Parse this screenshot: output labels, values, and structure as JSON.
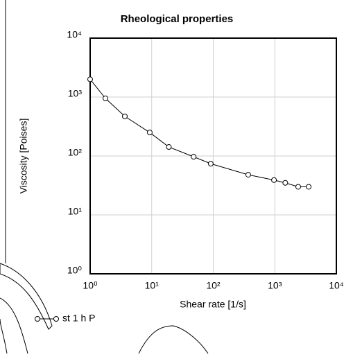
{
  "chart_data": {
    "type": "line",
    "title": "Rheological properties",
    "x_label": "Shear rate [1/s]",
    "y_label": "Viscosity [Poises]",
    "x": [
      1,
      1.77,
      3.66,
      9.3,
      19,
      48,
      91,
      370,
      970,
      1480,
      2400,
      3550
    ],
    "series": [
      {
        "name": "st 1 h P",
        "color": "#000000",
        "values": [
          2000,
          950,
          470,
          250,
          142,
          97,
          74,
          48,
          39,
          35,
          30,
          30
        ]
      }
    ],
    "xlog": true,
    "ylog": true,
    "grid": true,
    "xlim": [
      1,
      10000
    ],
    "ylim": [
      1,
      10000
    ],
    "xticks": [
      {
        "value": 1,
        "label": "10⁰"
      },
      {
        "value": 10,
        "label": "10¹"
      },
      {
        "value": 100,
        "label": "10²"
      },
      {
        "value": 1000,
        "label": "10³"
      },
      {
        "value": 10000,
        "label": "10⁴"
      }
    ],
    "yticks": [
      {
        "value": 1,
        "label": "10⁰"
      },
      {
        "value": 10,
        "label": "10¹"
      },
      {
        "value": 100,
        "label": "10²"
      },
      {
        "value": 1000,
        "label": "10³"
      },
      {
        "value": 10000,
        "label": "10⁴"
      }
    ],
    "legend": "bottom-left"
  }
}
